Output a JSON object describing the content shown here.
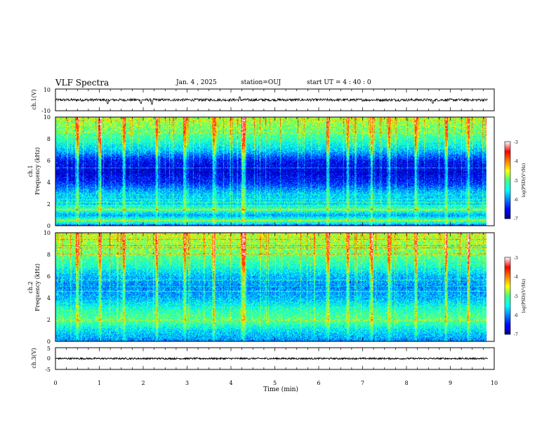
{
  "header": {
    "title": "VLF Spectra",
    "date": "Jan. 4 , 2025",
    "station": "station=OUJ",
    "start": "start UT = 4 : 40 : 0"
  },
  "chart_data": [
    {
      "type": "line",
      "panel": "ch1-waveform",
      "ylabel": "ch.1(V)",
      "ylim": [
        -10,
        10
      ],
      "yticks": [
        "10",
        "-10"
      ],
      "xlim": [
        0,
        10
      ],
      "baseline": 0,
      "noise_amplitude": 1.2,
      "spikes": [
        {
          "x": 1.19,
          "y": -3.5
        },
        {
          "x": 1.95,
          "y": -3.2
        },
        {
          "x": 2.2,
          "y": -4.0
        },
        {
          "x": 4.2,
          "y": 2.8
        },
        {
          "x": 8.6,
          "y": -3.0
        }
      ]
    },
    {
      "type": "heatmap",
      "panel": "ch1-spectrogram",
      "ylabel": "ch.1 Frequency (kHz)",
      "ylabel_lines": [
        "ch.1",
        "Frequency (kHz)"
      ],
      "ylim": [
        0,
        10
      ],
      "yticks": [
        "0",
        "2",
        "4",
        "6",
        "8",
        "10"
      ],
      "xlim": [
        0,
        10
      ],
      "colorbar": {
        "label": "log(PSD)(V²/Hz)",
        "range": [
          -7,
          -3
        ],
        "ticks": [
          "-3",
          "-4",
          "-5",
          "-6",
          "-7"
        ]
      },
      "frequency_profile_kHz": [
        {
          "f": 0.0,
          "v": -6.3
        },
        {
          "f": 0.5,
          "v": -5.0
        },
        {
          "f": 1.0,
          "v": -5.9
        },
        {
          "f": 1.5,
          "v": -5.1
        },
        {
          "f": 2.0,
          "v": -5.6
        },
        {
          "f": 3.0,
          "v": -5.7
        },
        {
          "f": 4.0,
          "v": -6.4
        },
        {
          "f": 5.0,
          "v": -6.7
        },
        {
          "f": 6.0,
          "v": -6.5
        },
        {
          "f": 7.0,
          "v": -5.7
        },
        {
          "f": 8.0,
          "v": -5.2
        },
        {
          "f": 9.0,
          "v": -4.9
        },
        {
          "f": 10.0,
          "v": -4.7
        }
      ],
      "bright_events_min": [
        0.5,
        1.0,
        1.55,
        2.3,
        2.95,
        3.6,
        4.25,
        4.3,
        6.2,
        6.65,
        7.2,
        7.6,
        8.2,
        8.9,
        9.4
      ]
    },
    {
      "type": "heatmap",
      "panel": "ch2-spectrogram",
      "ylabel": "ch.2 Frequency (kHz)",
      "ylabel_lines": [
        "ch.2",
        "Frequency (kHz)"
      ],
      "ylim": [
        0,
        10
      ],
      "yticks": [
        "0",
        "2",
        "4",
        "6",
        "8",
        "10"
      ],
      "xlim": [
        0,
        10
      ],
      "colorbar": {
        "label": "log(PSD)(V²/Hz)",
        "range": [
          -7,
          -3
        ],
        "ticks": [
          "-3",
          "-4",
          "-5",
          "-6",
          "-7"
        ]
      },
      "frequency_profile_kHz": [
        {
          "f": 0.0,
          "v": -6.0
        },
        {
          "f": 1.0,
          "v": -5.6
        },
        {
          "f": 2.0,
          "v": -5.0
        },
        {
          "f": 3.0,
          "v": -5.3
        },
        {
          "f": 4.0,
          "v": -5.8
        },
        {
          "f": 5.0,
          "v": -6.0
        },
        {
          "f": 6.0,
          "v": -5.8
        },
        {
          "f": 7.0,
          "v": -5.3
        },
        {
          "f": 8.0,
          "v": -5.0
        },
        {
          "f": 9.0,
          "v": -4.8
        },
        {
          "f": 10.0,
          "v": -4.6
        }
      ],
      "bright_events_min": [
        0.5,
        1.0,
        1.55,
        2.3,
        2.95,
        3.6,
        4.25,
        4.3,
        6.2,
        6.65,
        7.2,
        7.6,
        8.2,
        8.9,
        9.4
      ]
    },
    {
      "type": "line",
      "panel": "ch3-waveform",
      "ylabel": "ch.3(V)",
      "ylim": [
        -5,
        5
      ],
      "yticks": [
        "5",
        "0",
        "-5"
      ],
      "xlim": [
        0,
        10
      ],
      "baseline": 0,
      "noise_amplitude": 0.35
    },
    {
      "type": "axis",
      "panel": "time-axis",
      "xlabel": "Time (min)",
      "xlim": [
        0,
        10
      ],
      "xticks": [
        "0",
        "1",
        "2",
        "3",
        "4",
        "5",
        "6",
        "7",
        "8",
        "9",
        "10"
      ]
    }
  ]
}
